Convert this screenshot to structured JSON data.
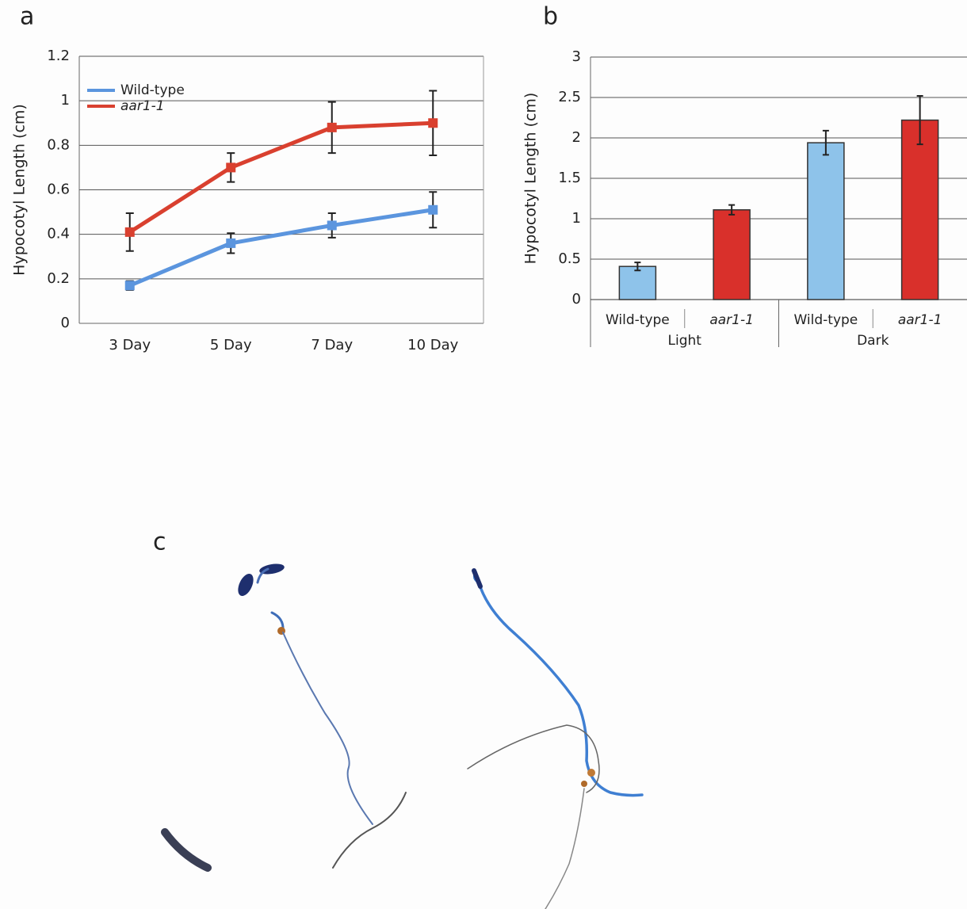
{
  "panel_labels": [
    "a",
    "b",
    "c"
  ],
  "chart_data": [
    {
      "type": "line",
      "ylabel": "Hypocotyl Length (cm)",
      "categories": [
        "3 Day",
        "5 Day",
        "7 Day",
        "10 Day"
      ],
      "ylim": [
        0,
        1.2
      ],
      "yticks": [
        0,
        0.2,
        0.4,
        0.6,
        0.8,
        1,
        1.2
      ],
      "grid": true,
      "legend": "upper left",
      "series": [
        {
          "name": "Wild-type",
          "color": "#5b95de",
          "italic": false,
          "values": [
            0.17,
            0.36,
            0.44,
            0.51
          ],
          "errors": [
            0.02,
            0.045,
            0.055,
            0.08
          ]
        },
        {
          "name": "aar1-1",
          "color": "#d9402f",
          "italic": true,
          "values": [
            0.41,
            0.7,
            0.88,
            0.9
          ],
          "errors": [
            0.085,
            0.065,
            0.115,
            0.145
          ]
        }
      ]
    },
    {
      "type": "bar",
      "ylabel": "Hypocotyl Length (cm)",
      "ylim": [
        0,
        3
      ],
      "yticks": [
        0,
        0.5,
        1,
        1.5,
        2,
        2.5,
        3
      ],
      "grid": true,
      "colors": [
        "#8ec3ea",
        "#d9302b"
      ],
      "category_italic": [
        false,
        true
      ],
      "groups": [
        {
          "name": "Light",
          "categories": [
            "Wild-type",
            "aar1-1"
          ],
          "values": [
            0.41,
            1.11
          ],
          "errors": [
            0.05,
            0.06
          ]
        },
        {
          "name": "Dark",
          "categories": [
            "Wild-type",
            "aar1-1"
          ],
          "values": [
            1.94,
            2.22
          ],
          "errors": [
            0.15,
            0.3
          ]
        }
      ]
    }
  ]
}
